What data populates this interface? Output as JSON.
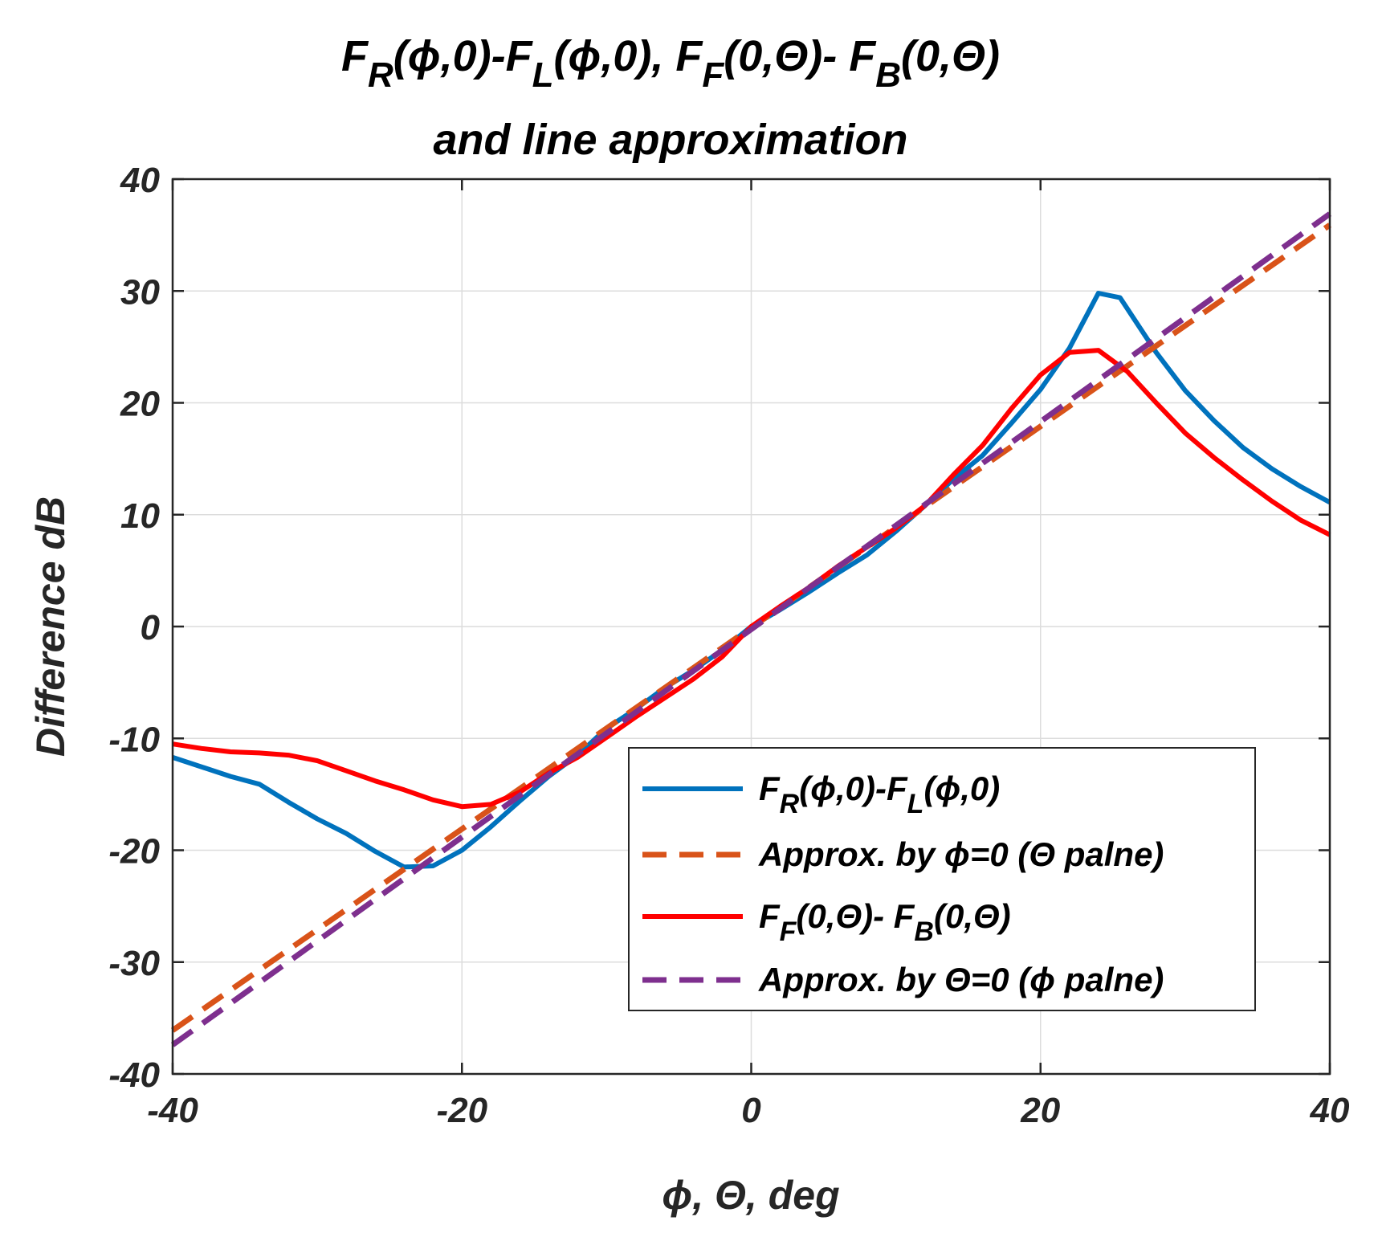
{
  "chart_data": {
    "type": "line",
    "title": {
      "line1_parts": [
        "F",
        "R",
        "(ϕ,0)-F",
        "L",
        "(ϕ,0),  F",
        "F",
        "(0,Θ)- F",
        "B",
        "(0,Θ)"
      ],
      "line2": "and line approximation"
    },
    "xlabel": "ϕ, Θ, deg",
    "ylabel": "Difference dB",
    "xlim": [
      -40,
      40
    ],
    "ylim": [
      -40,
      40
    ],
    "xticks": [
      -40,
      -20,
      0,
      20,
      40
    ],
    "yticks": [
      -40,
      -30,
      -20,
      -10,
      0,
      10,
      20,
      30,
      40
    ],
    "grid": true,
    "legend_position": "lower-right",
    "series": [
      {
        "name": "F_R(ϕ,0)-F_L(ϕ,0)",
        "legend_parts": [
          "F",
          "R",
          "(ϕ,0)-F",
          "L",
          "(ϕ,0)"
        ],
        "color": "#0072BD",
        "style": "solid",
        "x": [
          -40,
          -36,
          -34,
          -32,
          -30,
          -28,
          -26,
          -24,
          -22,
          -20,
          -18,
          -16,
          -14,
          -12,
          -10,
          -8,
          -6,
          -4,
          -2,
          0,
          2,
          4,
          6,
          8,
          10,
          12,
          14,
          16,
          18,
          20,
          22,
          24,
          25.5,
          28,
          30,
          32,
          34,
          36,
          38,
          40
        ],
        "y": [
          -11.7,
          -13.4,
          -14.1,
          -15.7,
          -17.2,
          -18.5,
          -20.1,
          -21.5,
          -21.4,
          -20.0,
          -17.9,
          -15.6,
          -13.4,
          -11.5,
          -9.1,
          -7.4,
          -5.5,
          -3.9,
          -2.1,
          0,
          1.5,
          3.1,
          4.8,
          6.4,
          8.5,
          10.8,
          13.2,
          15.3,
          18.2,
          21.2,
          24.9,
          29.8,
          29.4,
          24.5,
          21.1,
          18.4,
          16.0,
          14.1,
          12.5,
          11.1
        ]
      },
      {
        "name": "Approx. by ϕ=0 (Θ palne)",
        "legend_parts": [
          "Approx. by ",
          "ϕ",
          "=0 (",
          "Θ",
          " palne)"
        ],
        "color": "#D95319",
        "style": "dashed",
        "x": [
          -40,
          40
        ],
        "y": [
          -36.1,
          35.9
        ]
      },
      {
        "name": "F_F(0,Θ)- F_B(0,Θ)",
        "legend_parts": [
          "F",
          "F",
          "(0,Θ)- F",
          "B",
          "(0,Θ)"
        ],
        "color": "#FF0000",
        "style": "solid",
        "x": [
          -40,
          -38,
          -36,
          -34,
          -32,
          -30,
          -28,
          -26,
          -24,
          -22,
          -20,
          -18,
          -16,
          -14,
          -12,
          -10,
          -8,
          -6,
          -4,
          -2,
          0,
          2,
          4,
          6,
          8,
          10,
          12,
          14,
          16,
          18,
          20,
          22,
          24,
          26,
          28,
          30,
          32,
          34,
          36,
          38,
          40
        ],
        "y": [
          -10.5,
          -10.9,
          -11.2,
          -11.3,
          -11.5,
          -12.0,
          -12.9,
          -13.8,
          -14.6,
          -15.5,
          -16.1,
          -15.9,
          -14.8,
          -13.1,
          -11.7,
          -9.9,
          -8.1,
          -6.4,
          -4.7,
          -2.7,
          0,
          1.8,
          3.5,
          5.4,
          7.1,
          8.8,
          10.8,
          13.6,
          16.2,
          19.5,
          22.5,
          24.5,
          24.7,
          22.8,
          20.0,
          17.3,
          15.1,
          13.1,
          11.2,
          9.5,
          8.2
        ]
      },
      {
        "name": "Approx. by Θ=0 (ϕ palne)",
        "legend_parts": [
          "Approx. by ",
          "Θ",
          "=0 (",
          "ϕ",
          " palne)"
        ],
        "color": "#7E2F8E",
        "style": "dashed",
        "x": [
          -40,
          40
        ],
        "y": [
          -37.4,
          36.9
        ]
      }
    ]
  }
}
